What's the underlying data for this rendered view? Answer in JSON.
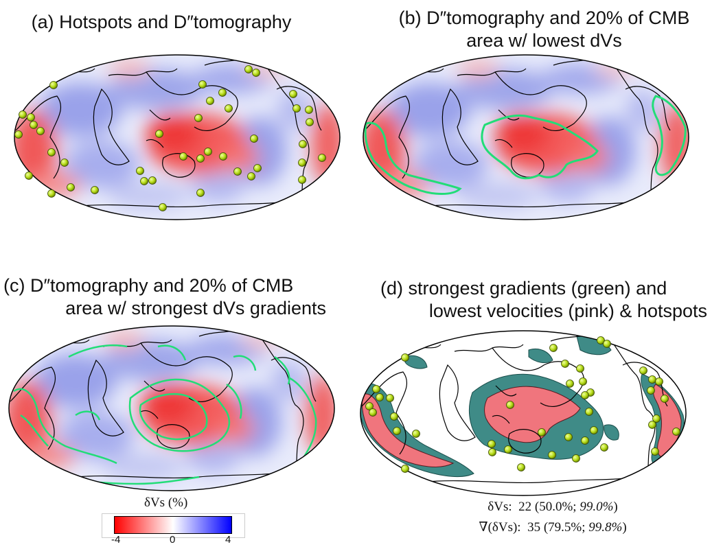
{
  "panels": [
    {
      "title_line1": "(a) Hotspots and D″tomography",
      "title_line2": ""
    },
    {
      "title_line1": "(b) D″tomography and 20% of CMB",
      "title_line2": "area w/ lowest dVs"
    },
    {
      "title_line1": "(c) D″tomography and 20% of CMB",
      "title_line2": "area w/ strongest dVs gradients"
    },
    {
      "title_line1": "(d) strongest gradients (green) and",
      "title_line2": "lowest velocities (pink) & hotspots"
    }
  ],
  "colorbar": {
    "label": "δVs (%)",
    "tick_min": "-4",
    "tick_mid": "0",
    "tick_max": "4",
    "colors": {
      "low": "#ff0000",
      "mid": "#ffffff",
      "high": "#0000ff"
    }
  },
  "stats": {
    "line1_label": "δVs:",
    "line1_value": "22 (50.0%;",
    "line1_italic": "99.0%",
    "line1_end": ")",
    "line2_label": "∇(δVs):",
    "line2_value": "35 (79.5%;",
    "line2_italic": "99.8%",
    "line2_end": ")"
  },
  "colors": {
    "contour_green": "#22dd77",
    "hotspot": "#b7dc1a",
    "pink_fill": "#f0757d",
    "teal_fill": "#3f8b87"
  }
}
